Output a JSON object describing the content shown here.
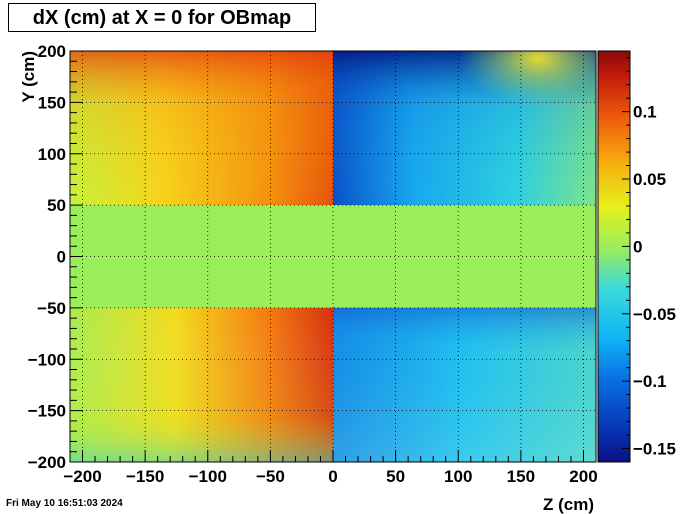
{
  "chart_data": {
    "type": "heatmap",
    "title": "dX (cm) at X = 0 for OBmap",
    "xlabel": "Z (cm)",
    "ylabel": "Y (cm)",
    "xlim": [
      -210,
      210
    ],
    "ylim": [
      -200,
      200
    ],
    "x_ticks": [
      -200,
      -150,
      -100,
      -50,
      0,
      50,
      100,
      150,
      200
    ],
    "y_ticks": [
      -200,
      -150,
      -100,
      -50,
      0,
      50,
      100,
      150,
      200
    ],
    "x_tick_labels": [
      "−200",
      "−150",
      "−100",
      "−50",
      "0",
      "50",
      "100",
      "150",
      "200"
    ],
    "y_tick_labels": [
      "−200",
      "−150",
      "−100",
      "−50",
      "0",
      "50",
      "100",
      "150",
      "200"
    ],
    "z_range": [
      -0.16,
      0.145
    ],
    "z_ticks": [
      -0.15,
      -0.1,
      -0.05,
      0,
      0.05,
      0.1
    ],
    "z_tick_labels": [
      "−0.15",
      "−0.1",
      "−0.05",
      "0",
      "0.05",
      "0.1"
    ],
    "grid": true,
    "colormap": "rainbow",
    "regions": [
      {
        "z_range": [
          -200,
          0
        ],
        "y_range": [
          50,
          200
        ],
        "approx_dX_range": [
          0.02,
          0.13
        ]
      },
      {
        "z_range": [
          0,
          200
        ],
        "y_range": [
          50,
          200
        ],
        "approx_dX_range": [
          -0.16,
          0.04
        ]
      },
      {
        "z_range": [
          -200,
          200
        ],
        "y_range": [
          -50,
          50
        ],
        "approx_dX_range": [
          0,
          0
        ]
      },
      {
        "z_range": [
          -200,
          0
        ],
        "y_range": [
          -200,
          -50
        ],
        "approx_dX_range": [
          0.0,
          0.14
        ]
      },
      {
        "z_range": [
          0,
          200
        ],
        "y_range": [
          -200,
          -50
        ],
        "approx_dX_range": [
          -0.08,
          0.0
        ]
      }
    ]
  },
  "footer": {
    "timestamp": "Fri May 10 16:51:03 2024"
  },
  "colors": {
    "background": "#ffffff",
    "zero_level": "#99ee5a",
    "frame": "#000000"
  }
}
